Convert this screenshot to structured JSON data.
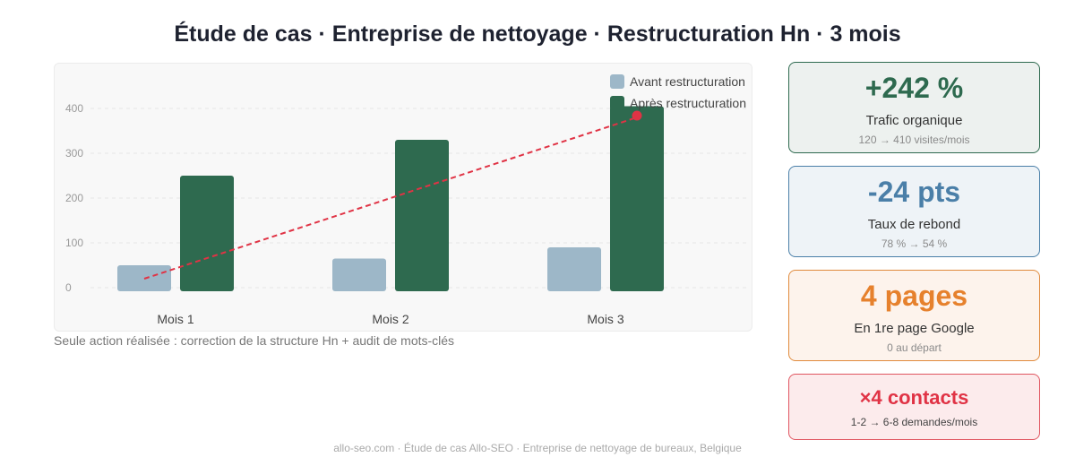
{
  "title": "Étude de cas · Entreprise de nettoyage · Restructuration Hn · 3 mois",
  "chart_data": {
    "type": "bar",
    "categories": [
      "Mois 1",
      "Mois 2",
      "Mois 3"
    ],
    "series": [
      {
        "name": "Avant restructuration",
        "values": [
          50,
          65,
          90
        ],
        "color": "#9db7c8"
      },
      {
        "name": "Après restructuration",
        "values": [
          250,
          330,
          405
        ],
        "color": "#2e6a4f"
      }
    ],
    "trend_line": {
      "values": [
        20,
        200,
        380
      ],
      "color": "#e03345",
      "style": "dashed"
    },
    "y_ticks": [
      0,
      100,
      200,
      300,
      400
    ],
    "ylim": [
      -80,
      500
    ],
    "grid": true,
    "legend_position": "top-right"
  },
  "footnote": "Seule action réalisée : correction de la structure Hn + audit de mots-clés",
  "cards": [
    {
      "value": "+242 %",
      "label": "Trafic organique",
      "sub": "120 → 410 visites/mois",
      "color": "#2e6a4f"
    },
    {
      "value": "-24 pts",
      "label": "Taux de rebond",
      "sub": "78 % → 54 %",
      "color": "#4a7fa8"
    },
    {
      "value": "4 pages",
      "label": "En 1re page Google",
      "sub": "0 au départ",
      "color": "#e6812d"
    },
    {
      "value": "×4 contacts",
      "sub": "1-2 → 6-8 demandes/mois",
      "color": "#e03345"
    }
  ],
  "footer": "allo-seo.com · Étude de cas Allo-SEO · Entreprise de nettoyage de bureaux, Belgique"
}
